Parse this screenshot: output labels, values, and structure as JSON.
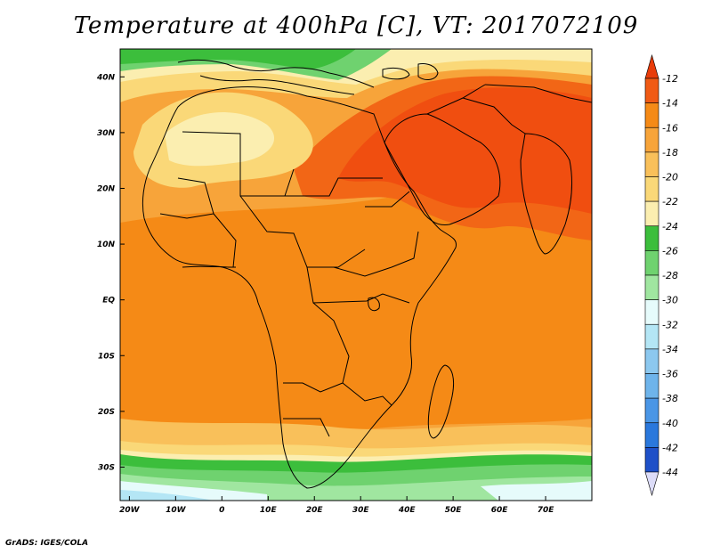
{
  "title": "Temperature at 400hPa [C], VT: 2017072109",
  "footer": "GrADS: IGES/COLA",
  "map": {
    "type": "filled-contour-map",
    "region": "Africa, Middle East and South Asia",
    "lon_range": [
      -22,
      80
    ],
    "lat_range": [
      -36,
      45
    ],
    "lon_ticks": [
      {
        "value": -20,
        "label": "20W"
      },
      {
        "value": -10,
        "label": "10W"
      },
      {
        "value": 0,
        "label": "0"
      },
      {
        "value": 10,
        "label": "10E"
      },
      {
        "value": 20,
        "label": "20E"
      },
      {
        "value": 30,
        "label": "30E"
      },
      {
        "value": 40,
        "label": "40E"
      },
      {
        "value": 50,
        "label": "50E"
      },
      {
        "value": 60,
        "label": "60E"
      },
      {
        "value": 70,
        "label": "70E"
      }
    ],
    "lat_ticks": [
      {
        "value": 40,
        "label": "40N"
      },
      {
        "value": 30,
        "label": "30N"
      },
      {
        "value": 20,
        "label": "20N"
      },
      {
        "value": 10,
        "label": "10N"
      },
      {
        "value": 0,
        "label": "EQ"
      },
      {
        "value": -10,
        "label": "10S"
      },
      {
        "value": -20,
        "label": "20S"
      },
      {
        "value": -30,
        "label": "30S"
      }
    ]
  },
  "colorbar": {
    "levels": [
      "-12",
      "-14",
      "-16",
      "-18",
      "-20",
      "-22",
      "-24",
      "-26",
      "-28",
      "-30",
      "-32",
      "-34",
      "-36",
      "-38",
      "-40",
      "-42",
      "-44"
    ],
    "colors": [
      "#f05a14",
      "#f58a16",
      "#f7a43a",
      "#f9c05a",
      "#fad878",
      "#fbeeb0",
      "#3cbe3c",
      "#6fd26f",
      "#a0e6a0",
      "#e6fbfb",
      "#b4e6f5",
      "#8cc8ef",
      "#6eb4eb",
      "#4a96e6",
      "#2a78dc",
      "#1e50c8",
      "#0c1e78"
    ],
    "top_arrow_color": "#e83c0a",
    "bottom_arrow_color": "#dcdcf8"
  }
}
